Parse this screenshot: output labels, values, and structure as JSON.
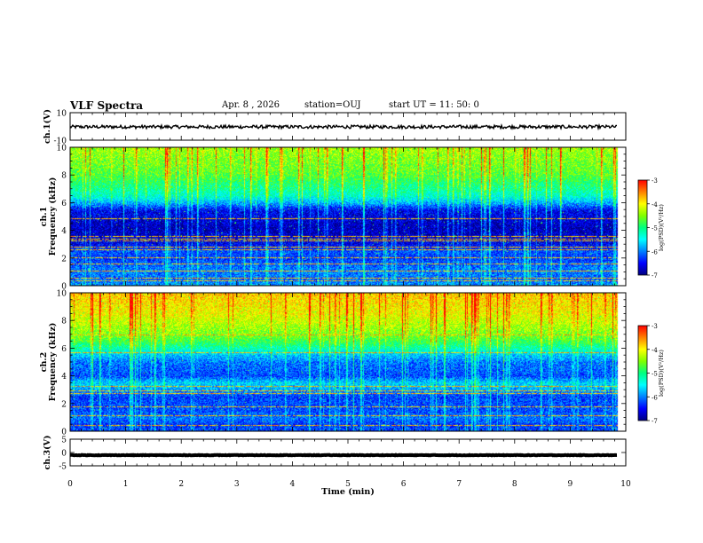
{
  "header": {
    "title": "VLF Spectra",
    "date": "Apr. 8  , 2026",
    "station": "station=OUJ",
    "start_time": "start  UT  =   11: 50: 0"
  },
  "colors": {
    "axis": "#000000",
    "trace": "#000000",
    "colormap": [
      "#000080",
      "#0000ff",
      "#0080ff",
      "#00ffff",
      "#00ff80",
      "#80ff00",
      "#ffff00",
      "#ff8000",
      "#ff0000",
      "#ffffff"
    ]
  },
  "chart_data": [
    {
      "type": "line",
      "panel": "ch1-waveform",
      "ylabel": "ch.1(V)",
      "ylim": [
        -10,
        10
      ],
      "yticks": [
        "10",
        "-10"
      ],
      "xlim": [
        0,
        10
      ],
      "trace_level_v": -0.3,
      "trace_amplitude_v": 1.2,
      "data_end_min": 9.85
    },
    {
      "type": "heatmap",
      "panel": "ch1-spectrogram",
      "ylabel": "ch.1\nFrequency (kHz)",
      "ylim": [
        0,
        10
      ],
      "yticks": [
        "0",
        "2",
        "4",
        "6",
        "8",
        "10"
      ],
      "xlim": [
        0,
        10
      ],
      "data_end_min": 9.85,
      "profile_freq_khz": [
        0,
        0.5,
        1.0,
        1.5,
        2.0,
        2.5,
        3.0,
        3.5,
        4.0,
        4.5,
        5.0,
        5.5,
        6.0,
        6.5,
        7.0,
        7.5,
        8.0,
        8.5,
        9.0,
        9.5,
        10.0
      ],
      "profile_level": [
        0.28,
        0.22,
        0.25,
        0.22,
        0.18,
        0.2,
        0.12,
        0.08,
        0.06,
        0.06,
        0.1,
        0.12,
        0.3,
        0.42,
        0.48,
        0.52,
        0.58,
        0.6,
        0.62,
        0.64,
        0.66
      ],
      "lines_khz": [
        0.4,
        0.55,
        1.1,
        1.6,
        2.05,
        2.6,
        2.8,
        3.25,
        3.4,
        3.6,
        4.9
      ],
      "colorbar": {
        "label": "log(PSD)(V²/Hz)",
        "range": [
          -7,
          -3
        ],
        "ticks": [
          "-3",
          "-4",
          "-5",
          "-6",
          "-7"
        ]
      }
    },
    {
      "type": "heatmap",
      "panel": "ch2-spectrogram",
      "ylabel": "ch.2\nFrequency (kHz)",
      "ylim": [
        0,
        10
      ],
      "yticks": [
        "0",
        "2",
        "4",
        "6",
        "8",
        "10"
      ],
      "xlim": [
        0,
        10
      ],
      "data_end_min": 9.85,
      "profile_freq_khz": [
        0,
        0.5,
        1.0,
        1.5,
        2.0,
        2.5,
        3.0,
        3.5,
        4.0,
        4.5,
        5.0,
        5.5,
        6.0,
        6.5,
        7.0,
        7.5,
        8.0,
        8.5,
        9.0,
        9.5,
        10.0
      ],
      "profile_level": [
        0.2,
        0.18,
        0.24,
        0.2,
        0.2,
        0.18,
        0.28,
        0.34,
        0.2,
        0.22,
        0.24,
        0.32,
        0.45,
        0.55,
        0.62,
        0.66,
        0.7,
        0.74,
        0.76,
        0.78,
        0.8
      ],
      "lines_khz": [
        0.45,
        1.15,
        1.8,
        2.75,
        2.95,
        3.3,
        5.7,
        7.0
      ],
      "colorbar": {
        "label": "log(PSD)(V²/Hz)",
        "range": [
          -7,
          -3
        ],
        "ticks": [
          "-3",
          "-4",
          "-5",
          "-6",
          "-7"
        ]
      }
    },
    {
      "type": "line",
      "panel": "ch3-waveform",
      "ylabel": "ch.3(V)",
      "ylim": [
        -5,
        5
      ],
      "yticks": [
        "5",
        "0",
        "-5"
      ],
      "xlim": [
        0,
        10
      ],
      "trace_level_v": -1.0,
      "trace_amplitude_v": 0.1,
      "data_end_min": 9.85
    }
  ],
  "x_axis": {
    "label": "Time (min)",
    "ticks": [
      "0",
      "1",
      "2",
      "3",
      "4",
      "5",
      "6",
      "7",
      "8",
      "9",
      "10"
    ]
  }
}
